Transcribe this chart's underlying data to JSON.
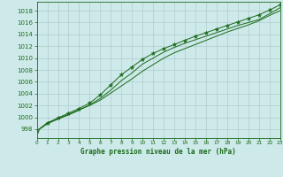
{
  "title": "Graphe pression niveau de la mer (hPa)",
  "background_color": "#cde9e9",
  "grid_color": "#b0cccc",
  "line_color": "#1a6b1a",
  "x_values": [
    0,
    1,
    2,
    3,
    4,
    5,
    6,
    7,
    8,
    9,
    10,
    11,
    12,
    13,
    14,
    15,
    16,
    17,
    18,
    19,
    20,
    21,
    22,
    23
  ],
  "line1": [
    997.7,
    999.1,
    999.8,
    1000.5,
    1001.3,
    1002.0,
    1002.9,
    1004.1,
    1005.3,
    1006.5,
    1007.8,
    1008.9,
    1010.0,
    1010.9,
    1011.6,
    1012.3,
    1013.0,
    1013.7,
    1014.4,
    1015.0,
    1015.6,
    1016.3,
    1017.2,
    1018.0
  ],
  "line2": [
    997.7,
    998.9,
    999.7,
    1000.4,
    1001.2,
    1002.1,
    1003.2,
    1004.6,
    1006.2,
    1007.5,
    1009.0,
    1010.0,
    1011.0,
    1011.8,
    1012.5,
    1013.1,
    1013.7,
    1014.3,
    1014.9,
    1015.5,
    1016.0,
    1016.5,
    1017.5,
    1018.5
  ],
  "line3": [
    997.7,
    999.0,
    999.9,
    1000.7,
    1001.5,
    1002.4,
    1003.8,
    1005.5,
    1007.2,
    1008.5,
    1009.8,
    1010.8,
    1011.6,
    1012.3,
    1013.0,
    1013.7,
    1014.3,
    1014.9,
    1015.5,
    1016.1,
    1016.7,
    1017.3,
    1018.1,
    1019.0
  ],
  "ylim": [
    996.5,
    1019.5
  ],
  "yticks": [
    998,
    1000,
    1002,
    1004,
    1006,
    1008,
    1010,
    1012,
    1014,
    1016,
    1018
  ],
  "xlim": [
    0,
    23
  ],
  "xticks": [
    0,
    1,
    2,
    3,
    4,
    5,
    6,
    7,
    8,
    9,
    10,
    11,
    12,
    13,
    14,
    15,
    16,
    17,
    18,
    19,
    20,
    21,
    22,
    23
  ]
}
